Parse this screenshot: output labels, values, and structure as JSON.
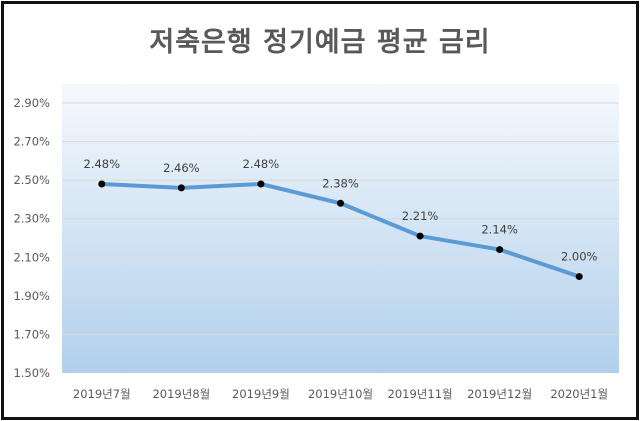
{
  "chart_data": {
    "type": "line",
    "title": "저축은행 정기예금 평균 금리",
    "xlabel": "",
    "ylabel": "",
    "categories": [
      "2019년7월",
      "2019년8월",
      "2019년9월",
      "2019년10월",
      "2019년11월",
      "2019년12월",
      "2020년1월"
    ],
    "series": [
      {
        "name": "정기예금 평균 금리",
        "values": [
          2.48,
          2.46,
          2.48,
          2.38,
          2.21,
          2.14,
          2.0
        ],
        "labels": [
          "2.48%",
          "2.46%",
          "2.48%",
          "2.38%",
          "2.21%",
          "2.14%",
          "2.00%"
        ],
        "color": "#5b9bd5",
        "marker_color": "#000000"
      }
    ],
    "ylim": [
      1.5,
      2.9
    ],
    "yticks": [
      "1.50%",
      "1.70%",
      "1.90%",
      "2.10%",
      "2.30%",
      "2.50%",
      "2.70%",
      "2.90%"
    ],
    "ytick_values": [
      1.5,
      1.7,
      1.9,
      2.1,
      2.3,
      2.5,
      2.7,
      2.9
    ],
    "grid": true,
    "legend": "none",
    "background_gradient": [
      "#f5f9fd",
      "#b1d0ec"
    ]
  }
}
